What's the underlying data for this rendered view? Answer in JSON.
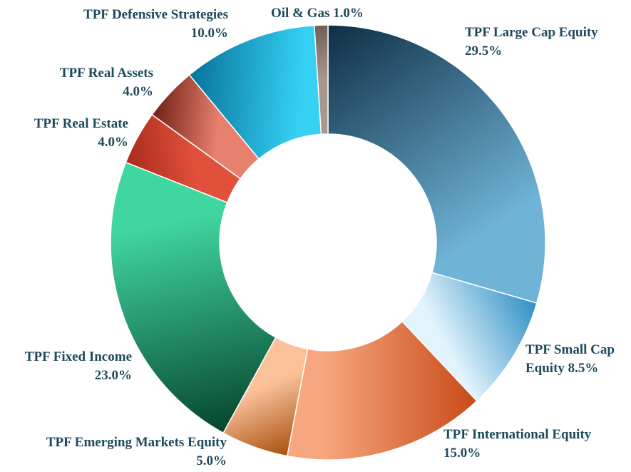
{
  "chart_data": {
    "type": "donut",
    "categories": [
      "TPF Large Cap Equity",
      "TPF Small Cap Equity",
      "TPF International Equity",
      "TPF Emerging Markets Equity",
      "TPF Fixed Income",
      "TPF Real Estate",
      "TPF Real Assets",
      "TPF Defensive Strategies",
      "Oil & Gas"
    ],
    "values": [
      29.5,
      8.5,
      15.0,
      5.0,
      23.0,
      4.0,
      4.0,
      10.0,
      1.0
    ],
    "value_labels": [
      "29.5%",
      "8.5%",
      "15.0%",
      "5.0%",
      "23.0%",
      "4.0%",
      "4.0%",
      "10.0%",
      "1.0%"
    ],
    "colors": [
      "#0f2e44",
      "#2e8fc4",
      "#c84a18",
      "#a8500f",
      "#07452c",
      "#a82a1c",
      "#6e1f14",
      "#07739a",
      "#6e5e56"
    ],
    "colors_light": [
      "#6fb3d6",
      "#e2f3fc",
      "#f7a77f",
      "#fbc29a",
      "#40d6a0",
      "#e0503a",
      "#e8806e",
      "#35d0f4",
      "#a8988e"
    ]
  }
}
